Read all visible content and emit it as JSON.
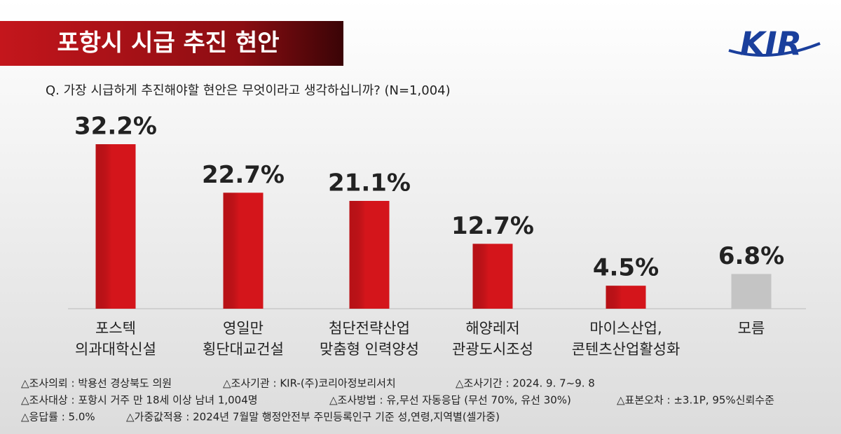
{
  "header": {
    "title": "포항시 시급 추진 현안",
    "logo": "KIR"
  },
  "chart_data": {
    "type": "bar",
    "title": "Q. 가장 시급하게 추진해야할 현안은 무엇이라고 생각하십니까? (N=1,004)",
    "categories": [
      "포스텍\n의과대학신설",
      "영일만\n횡단대교건설",
      "첨단전략산업\n맞춤형 인력양성",
      "해양레저\n관광도시조성",
      "마이스산업,\n콘텐츠산업활성화",
      "모름"
    ],
    "values": [
      32.2,
      22.7,
      21.1,
      12.7,
      4.5,
      6.8
    ],
    "value_labels": [
      "32.2%",
      "22.7%",
      "21.1%",
      "12.7%",
      "4.5%",
      "6.8%"
    ],
    "colors": [
      "#d4151b",
      "#d4151b",
      "#d4151b",
      "#d4151b",
      "#d4151b",
      "#c4c4c4"
    ]
  },
  "footer": [
    [
      "△조사의뢰 : 박용선 경상북도 의원",
      "△조사기관 : KIR-(주)코리아정보리서치",
      "△조사기간 : 2024. 9. 7~9. 8"
    ],
    [
      "△조사대상 : 포항시 거주 만 18세 이상 남녀 1,004명",
      "△조사방법 : 유,무선 자동응답 (무선 70%, 유선 30%)",
      "△표본오차 : ±3.1P, 95%신뢰수준"
    ],
    [
      "△응답률 : 5.0%",
      "△가중값적용 : 2024년 7월말 행정안전부 주민등록인구 기준 성,연령,지역별(셀가중)"
    ]
  ]
}
